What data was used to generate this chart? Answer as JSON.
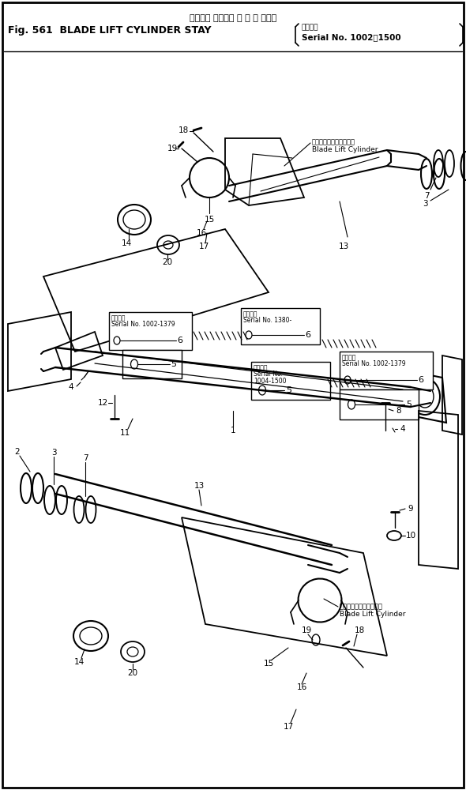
{
  "title_jp": "ブレード リフトシ リ ン ダ ステー",
  "title_en": "Fig. 561  BLADE LIFT CYLINDER STAY",
  "serial_jp": "適用号機",
  "serial_en": "Serial No. 1002～1500",
  "bg_color": "#ffffff",
  "lc": "#000000",
  "fig_width": 5.9,
  "fig_height": 10.0,
  "dpi": 100,
  "blade_lift_cylinder_jp": "ブレードリフトシリンダ",
  "blade_lift_cylinder_en": "Blade Lift Cylinder",
  "sn_1002_1379": "Serial No. 1002-1379",
  "sn_1380": "Serial No. 1380-",
  "sn_1004_1500": "Serial No.\n1004-1500",
  "tekiyo": "適用号機"
}
